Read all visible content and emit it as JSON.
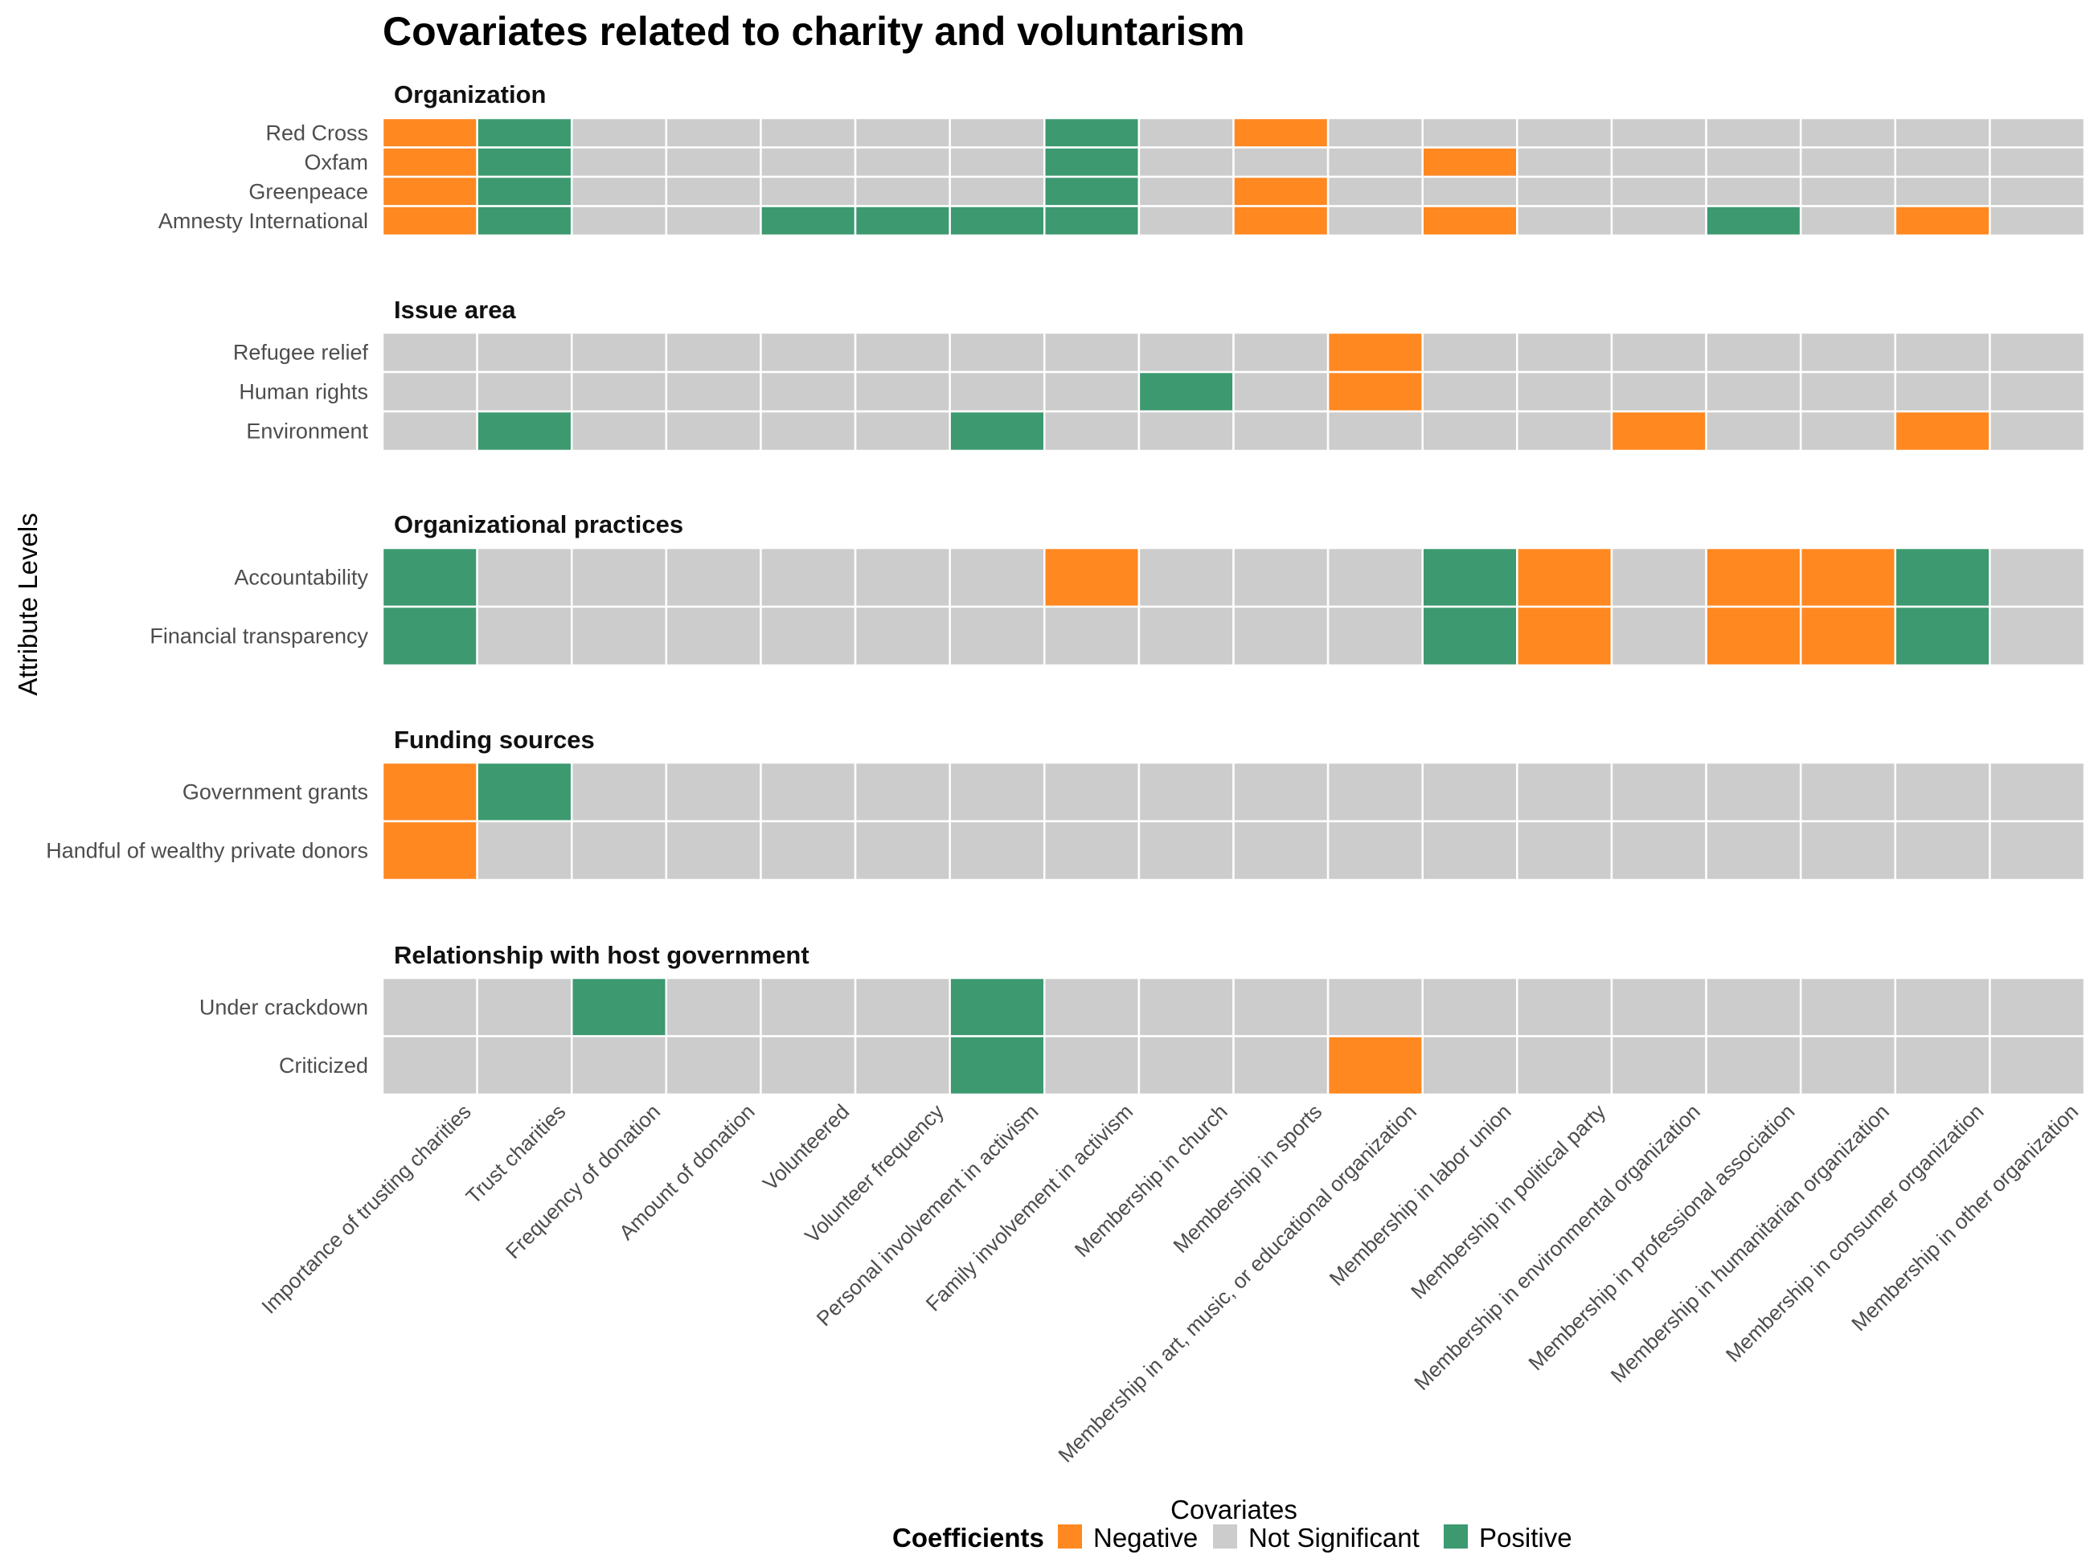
{
  "chart_data": {
    "type": "heatmap",
    "title": "Covariates related to charity and voluntarism",
    "xlabel": "Covariates",
    "ylabel": "Attribute Levels",
    "categories": [
      "Importance of trusting charities",
      "Trust charities",
      "Frequency of donation",
      "Amount of donation",
      "Volunteered",
      "Volunteer frequency",
      "Personal involvement in activism",
      "Family involvement in activism",
      "Membership in church",
      "Membership in sports",
      "Membership in art, music, or educational organization",
      "Membership in labor union",
      "Membership in political party",
      "Membership in environmental organization",
      "Membership in professional association",
      "Membership in humanitarian organization",
      "Membership in consumer organization",
      "Membership in other organization"
    ],
    "legend": {
      "title": "Coefficients",
      "position": "bottom",
      "items": [
        {
          "key": "N",
          "label": "Negative",
          "color": "#FF8821"
        },
        {
          "key": "S",
          "label": "Not Significant",
          "color": "#CCCCCC"
        },
        {
          "key": "P",
          "label": "Positive",
          "color": "#3D9970"
        }
      ]
    },
    "panels": [
      {
        "title": "Organization",
        "rows": [
          {
            "label": "Red Cross",
            "cells": "NPSSSSSPSNSSSSSSSS"
          },
          {
            "label": "Oxfam",
            "cells": "NPSSSSSPSSSNSSSSSS"
          },
          {
            "label": "Greenpeace",
            "cells": "NPSSSSSPSNSSSSSSSS"
          },
          {
            "label": "Amnesty International",
            "cells": "NPSSPPPPSNSNSSPSNS"
          }
        ]
      },
      {
        "title": "Issue area",
        "rows": [
          {
            "label": "Refugee relief",
            "cells": "SSSSSSSSSSNSSSSSSS"
          },
          {
            "label": "Human rights",
            "cells": "SSSSSSSSPSNSSSSSSS"
          },
          {
            "label": "Environment",
            "cells": "SPSSSSPSSSSSSNSSNS"
          }
        ]
      },
      {
        "title": "Organizational practices",
        "rows": [
          {
            "label": "Accountability",
            "cells": "PSSSSSSNSSSPNSNNPS"
          },
          {
            "label": "Financial transparency",
            "cells": "PSSSSSSSSSSPNSNNPS"
          }
        ]
      },
      {
        "title": "Funding sources",
        "rows": [
          {
            "label": "Government grants",
            "cells": "NPSSSSSSSSSSSSSSSS"
          },
          {
            "label": "Handful of wealthy private donors",
            "cells": "NSSSSSSSSSSSSSSSSS"
          }
        ]
      },
      {
        "title": "Relationship with host government",
        "rows": [
          {
            "label": "Under crackdown",
            "cells": "SSPSSSPSSSSSSSSSSS"
          },
          {
            "label": "Criticized",
            "cells": "SSSSSSPSSSNSSSSSSS"
          }
        ]
      }
    ]
  }
}
